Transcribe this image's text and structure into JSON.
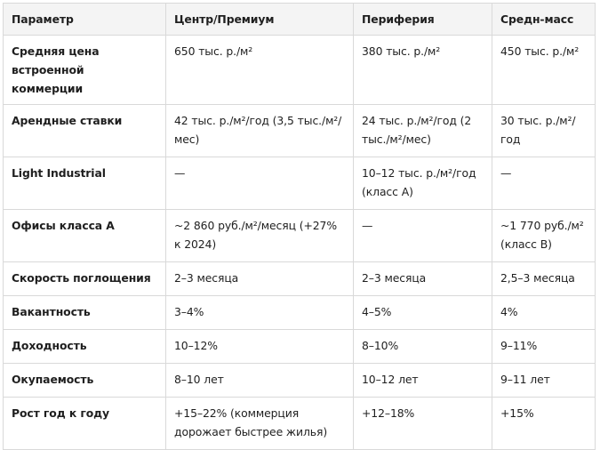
{
  "table": {
    "headers": [
      "Параметр",
      "Центр/Премиум",
      "Периферия",
      "Средн-масс"
    ],
    "rows": [
      [
        "Средняя цена встроенной коммерции",
        "650 тыс. р./м²",
        "380 тыс. р./м²",
        "450 тыс. р./м²"
      ],
      [
        "Арендные ставки",
        "42 тыс. р./м²/год (3,5 тыс./м²/мес)",
        "24 тыс. р./м²/год (2 тыс./м²/мес)",
        "30 тыс. р./м²/год"
      ],
      [
        "Light Industrial",
        "—",
        "10–12 тыс. р./м²/год (класс А)",
        "—"
      ],
      [
        "Офисы класса А",
        "~2 860 руб./м²/месяц (+27% к 2024)",
        "—",
        "~1 770 руб./м² (класс В)"
      ],
      [
        "Скорость поглощения",
        "2–3 месяца",
        "2–3 месяца",
        "2,5–3 месяца"
      ],
      [
        "Вакантность",
        "3–4%",
        "4–5%",
        "4%"
      ],
      [
        "Доходность",
        "10–12%",
        "8–10%",
        "9–11%"
      ],
      [
        "Окупаемость",
        "8–10 лет",
        "10–12 лет",
        "9–11 лет"
      ],
      [
        "Рост год к году",
        "+15–22% (коммерция дорожает быстрее жилья)",
        "+12–18%",
        "+15%"
      ]
    ]
  }
}
